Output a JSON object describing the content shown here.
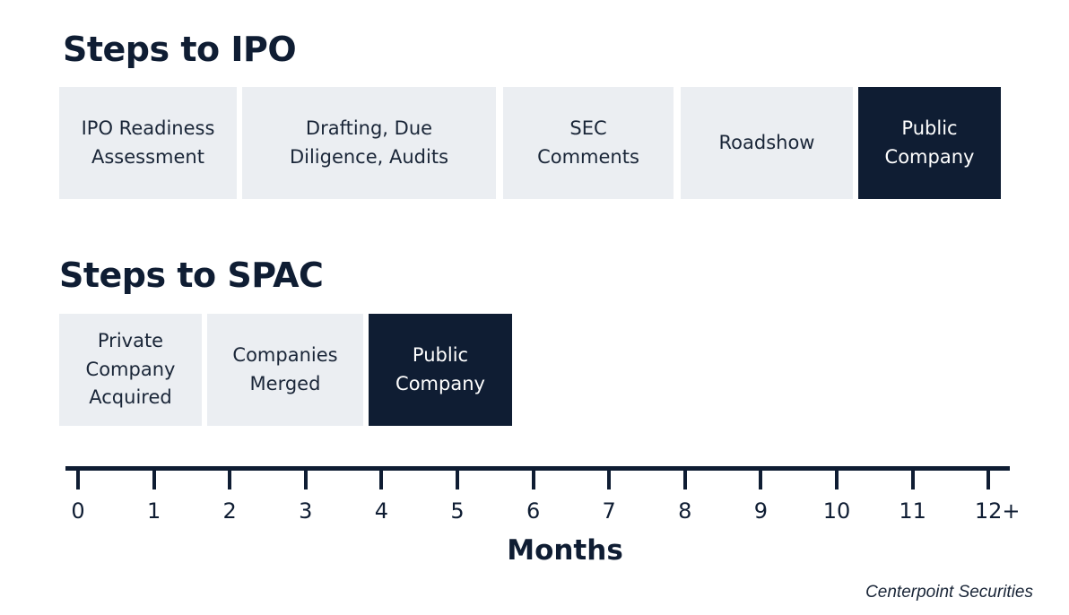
{
  "ipo": {
    "title": "Steps to IPO",
    "steps": [
      {
        "label": "IPO Readiness\nAssessment",
        "highlight": false
      },
      {
        "label": "Drafting, Due\nDiligence, Audits",
        "highlight": false
      },
      {
        "label": "SEC\nComments",
        "highlight": false
      },
      {
        "label": "Roadshow",
        "highlight": false
      },
      {
        "label": "Public\nCompany",
        "highlight": true
      }
    ]
  },
  "spac": {
    "title": "Steps to SPAC",
    "steps": [
      {
        "label": "Private\nCompany\nAcquired",
        "highlight": false
      },
      {
        "label": "Companies\nMerged",
        "highlight": false
      },
      {
        "label": "Public\nCompany",
        "highlight": true
      }
    ]
  },
  "timeline": {
    "tick_labels": [
      "0",
      "1",
      "2",
      "3",
      "4",
      "5",
      "6",
      "7",
      "8",
      "9",
      "10",
      "11",
      "12+"
    ],
    "axis_title": "Months"
  },
  "source": "Centerpoint Securities",
  "colors": {
    "dark_navy": "#0f1d33",
    "light_gray": "#ebeef2"
  }
}
